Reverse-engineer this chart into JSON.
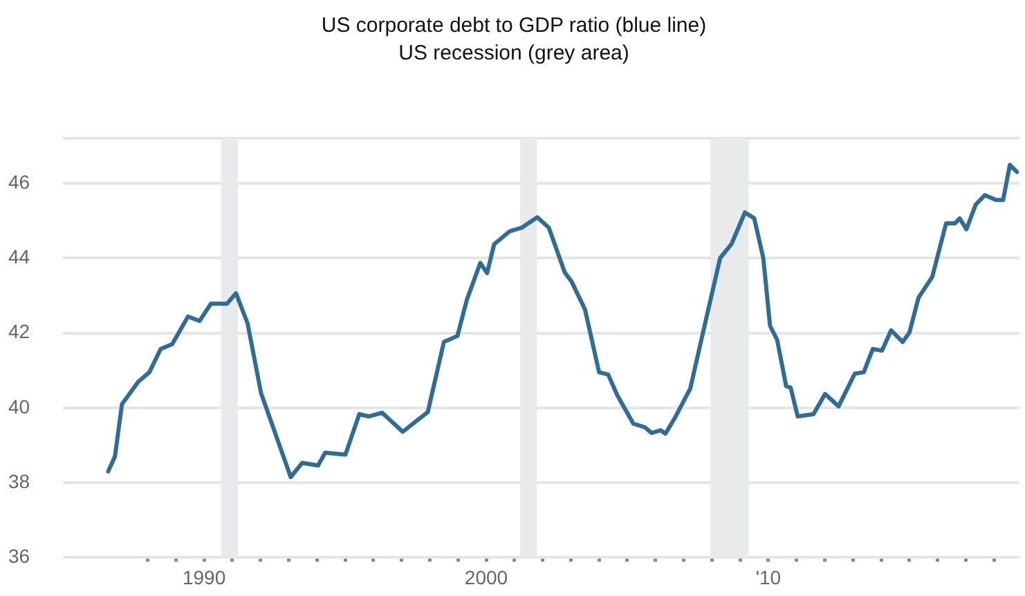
{
  "chart_data": {
    "type": "line",
    "title": "US corporate debt to GDP ratio (blue line)",
    "subtitle": "US recession (grey area)",
    "series": [
      {
        "color": "#2f6d97",
        "x": [
          1986.6,
          1986.84,
          1987.09,
          1987.67,
          1988.06,
          1988.46,
          1988.87,
          1989.43,
          1989.84,
          1990.24,
          1990.81,
          1991.13,
          1991.54,
          1992.02,
          1993.07,
          1993.48,
          1994.04,
          1994.29,
          1995.01,
          1995.5,
          1995.83,
          1996.31,
          1997.04,
          1997.93,
          1998.5,
          1998.98,
          1999.31,
          1999.79,
          2000.03,
          2000.28,
          2000.84,
          2001.25,
          2001.81,
          2002.22,
          2002.78,
          2003.02,
          2003.5,
          2004.0,
          2004.32,
          2004.65,
          2005.21,
          2005.62,
          2005.86,
          2006.18,
          2006.35,
          2006.67,
          2007.23,
          2007.72,
          2008.29,
          2008.69,
          2009.17,
          2009.5,
          2009.82,
          2010.06,
          2010.31,
          2010.63,
          2010.79,
          2011.04,
          2011.6,
          2012.01,
          2012.49,
          2013.06,
          2013.38,
          2013.7,
          2014.03,
          2014.35,
          2014.76,
          2015.0,
          2015.32,
          2015.81,
          2016.3,
          2016.62,
          2016.78,
          2017.02,
          2017.35,
          2017.67,
          2018.07,
          2018.32,
          2018.56,
          2018.81
        ],
        "values": [
          38.3,
          38.7,
          40.1,
          40.7,
          40.95,
          41.57,
          41.7,
          42.44,
          42.32,
          42.78,
          42.78,
          43.06,
          42.26,
          40.39,
          38.15,
          38.53,
          38.46,
          38.8,
          38.75,
          39.83,
          39.77,
          39.87,
          39.36,
          39.89,
          41.76,
          41.92,
          42.88,
          43.87,
          43.6,
          44.37,
          44.72,
          44.81,
          45.09,
          44.81,
          43.62,
          43.38,
          42.63,
          40.95,
          40.89,
          40.33,
          39.58,
          39.48,
          39.33,
          39.4,
          39.31,
          39.71,
          40.51,
          42.13,
          44.0,
          44.37,
          45.22,
          45.06,
          44.0,
          42.19,
          41.82,
          40.58,
          40.54,
          39.77,
          39.83,
          40.37,
          40.04,
          40.91,
          40.95,
          41.57,
          41.53,
          42.07,
          41.76,
          42.01,
          42.94,
          43.5,
          44.93,
          44.93,
          45.06,
          44.77,
          45.43,
          45.68,
          45.55,
          45.55,
          46.49,
          46.3
        ]
      }
    ],
    "xlim": [
      1985,
      2018.9
    ],
    "xticks": [
      {
        "value": 1988,
        "label": null
      },
      {
        "value": 1989,
        "label": null
      },
      {
        "value": 1990,
        "label": "1990"
      },
      {
        "value": 1991,
        "label": null
      },
      {
        "value": 1992,
        "label": null
      },
      {
        "value": 1993,
        "label": null
      },
      {
        "value": 1994,
        "label": null
      },
      {
        "value": 1995,
        "label": null
      },
      {
        "value": 1996,
        "label": null
      },
      {
        "value": 1997,
        "label": null
      },
      {
        "value": 1998,
        "label": null
      },
      {
        "value": 1999,
        "label": null
      },
      {
        "value": 2000,
        "label": "2000"
      },
      {
        "value": 2001,
        "label": null
      },
      {
        "value": 2002,
        "label": null
      },
      {
        "value": 2003,
        "label": null
      },
      {
        "value": 2004,
        "label": null
      },
      {
        "value": 2005,
        "label": null
      },
      {
        "value": 2006,
        "label": null
      },
      {
        "value": 2007,
        "label": null
      },
      {
        "value": 2008,
        "label": null
      },
      {
        "value": 2009,
        "label": null
      },
      {
        "value": 2010,
        "label": "'10"
      },
      {
        "value": 2011,
        "label": null
      },
      {
        "value": 2012,
        "label": null
      },
      {
        "value": 2013,
        "label": null
      },
      {
        "value": 2014,
        "label": null
      },
      {
        "value": 2015,
        "label": null
      },
      {
        "value": 2016,
        "label": null
      },
      {
        "value": 2017,
        "label": null
      },
      {
        "value": 2018,
        "label": null
      }
    ],
    "ylim": [
      36,
      47.2
    ],
    "yticks": [
      36,
      38,
      40,
      42,
      44,
      46,
      {
        "value": 47.2,
        "label": null
      }
    ],
    "bands": [
      {
        "axis": "x",
        "from": 1990.6,
        "to": 1991.2,
        "color": "#e8eaec"
      },
      {
        "axis": "x",
        "from": 2001.2,
        "to": 2001.8,
        "color": "#e8eaec"
      },
      {
        "axis": "x",
        "from": 2007.95,
        "to": 2009.3,
        "color": "#e8eaec"
      }
    ],
    "grid": "y",
    "legend": false,
    "marker": "none",
    "line_style": "solid"
  }
}
